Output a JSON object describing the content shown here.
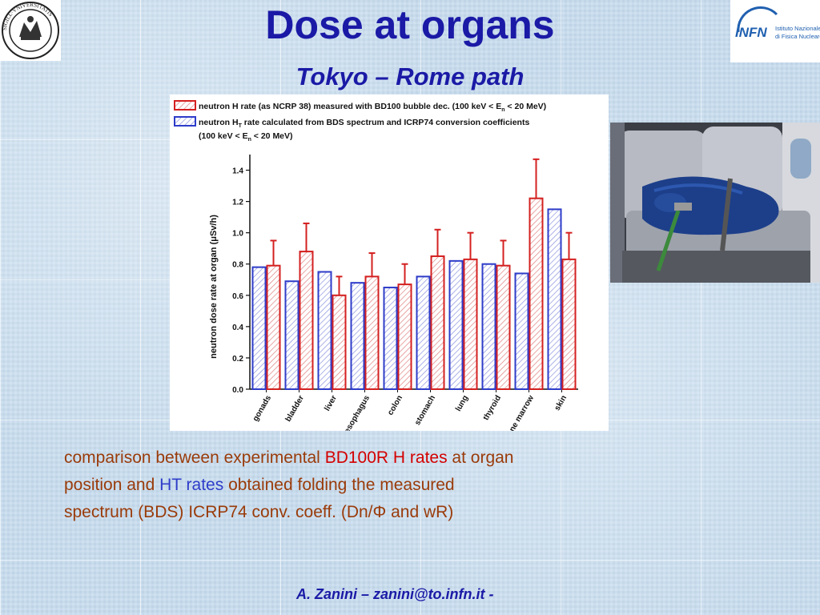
{
  "slide": {
    "title": "Dose at organs",
    "subtitle": "Tokyo – Rome path",
    "caption": {
      "line1_a": "comparison between experimental ",
      "line1_b": "BD100R H rates",
      "line1_c": " at organ",
      "line2_a": "position and ",
      "line2_b": "HT rates",
      "line2_c": " obtained folding the measured",
      "line3": "spectrum (BDS) ICRP74 conv. coeff. (Dn/Φ and wR)"
    },
    "footer": "A. Zanini – zanini@to.infn.it -",
    "seal_text": "SIGILL·VNIVERSITATIS",
    "infn": {
      "logo": "INFN",
      "name1": "Istituto Nazionale",
      "name2": "di Fisica Nucleare"
    }
  },
  "chart_data": {
    "type": "bar",
    "ylabel": "neutron dose rate at organ (μSv/h)",
    "ylim": [
      0,
      1.5
    ],
    "yticks": [
      "0.0",
      "0.2",
      "0.4",
      "0.6",
      "0.8",
      "1.0",
      "1.2",
      "1.4"
    ],
    "categories": [
      "gonads",
      "bladder",
      "liver",
      "oesophagus",
      "colon",
      "stomach",
      "lung",
      "thyroid",
      "bone marrow",
      "skin"
    ],
    "series": [
      {
        "name": "neutron HT rate calculated from BDS spectrum and ICRP74 conversion coefficients (100 keV < En < 20 MeV)",
        "color": "#2e3cc9",
        "values": [
          0.78,
          0.69,
          0.75,
          0.68,
          0.65,
          0.72,
          0.82,
          0.8,
          0.74,
          1.15
        ]
      },
      {
        "name": "neutron H rate (as NCRP 38) measured with BD100 bubble dec. (100 keV < En < 20 MeV)",
        "color": "#d42020",
        "values": [
          0.79,
          0.88,
          0.6,
          0.72,
          0.67,
          0.85,
          0.83,
          0.79,
          1.22,
          0.83
        ],
        "errors": [
          0.16,
          0.18,
          0.12,
          0.15,
          0.13,
          0.17,
          0.17,
          0.16,
          0.25,
          0.17
        ]
      }
    ],
    "legend": [
      {
        "line1": "neutron H rate (as NCRP 38) measured with BD100 bubble dec. (100 keV < E",
        "sub": "n",
        "line1_end": " < 20 MeV)"
      },
      {
        "line1": "neutron H",
        "sub": "T",
        "line1_end": " rate calculated from BDS spectrum and ICRP74 conversion coefficients",
        "line2": "(100 keV < E",
        "sub2": "n",
        "line2_end": " < 20 MeV)"
      }
    ],
    "legend_position": "top"
  }
}
